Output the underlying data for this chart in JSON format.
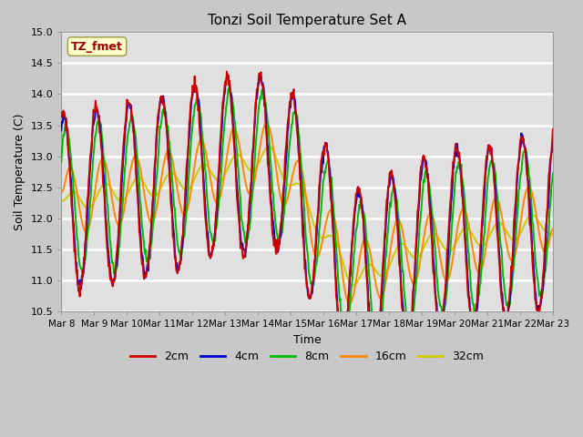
{
  "title": "Tonzi Soil Temperature Set A",
  "xlabel": "Time",
  "ylabel": "Soil Temperature (C)",
  "annotation": "TZ_fmet",
  "ylim": [
    10.5,
    15.0
  ],
  "yticks": [
    10.5,
    11.0,
    11.5,
    12.0,
    12.5,
    13.0,
    13.5,
    14.0,
    14.5,
    15.0
  ],
  "xtick_labels": [
    "Mar 8",
    "Mar 9",
    "Mar 10",
    "Mar 11",
    "Mar 12",
    "Mar 13",
    "Mar 14",
    "Mar 15",
    "Mar 16",
    "Mar 17",
    "Mar 18",
    "Mar 19",
    "Mar 20",
    "Mar 21",
    "Mar 22",
    "Mar 23"
  ],
  "colors": {
    "2cm": "#cc0000",
    "4cm": "#0000cc",
    "8cm": "#00bb00",
    "16cm": "#ff8800",
    "32cm": "#cccc00"
  },
  "legend_labels": [
    "2cm",
    "4cm",
    "8cm",
    "16cm",
    "32cm"
  ],
  "fig_bg": "#c8c8c8",
  "plot_bg": "#e0e0e0",
  "grid_color": "#ffffff",
  "annotation_bg": "#ffffcc",
  "annotation_border": "#999944",
  "annotation_text_color": "#990000",
  "line_width": 1.4,
  "n_points": 720,
  "time_days": 15
}
